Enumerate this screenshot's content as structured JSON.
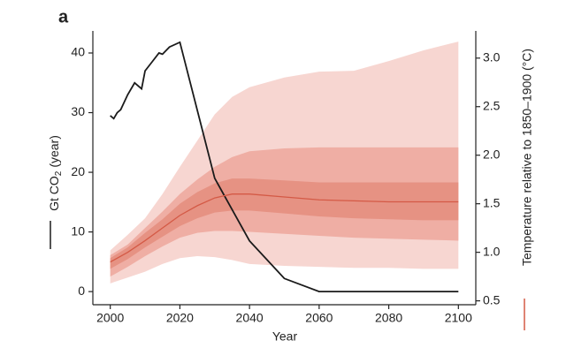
{
  "chart_data": {
    "type": "line",
    "panel_label": "a",
    "xlabel": "Year",
    "ylabel": [
      "Gt CO",
      "2",
      "(year)"
    ],
    "y2label": "Temperature relative to 1850–1900 (°C)",
    "xlim": [
      1995,
      2105
    ],
    "xticks": [
      2000,
      2020,
      2040,
      2060,
      2080,
      2100
    ],
    "ylim": [
      -2.2,
      43.7
    ],
    "yticks": [
      0,
      10,
      20,
      30,
      40
    ],
    "y2lim": [
      0.46,
      3.28
    ],
    "y2ticks": [
      0.5,
      {
        "value": 1,
        "label": "1.0"
      },
      1.5,
      {
        "value": 2,
        "label": "2.0"
      },
      2.5,
      {
        "value": 3,
        "label": "3.0"
      }
    ],
    "series": [
      {
        "color": "#1a1a1a",
        "axis": "y",
        "x": [
          2000,
          2001,
          2002,
          2003,
          2005,
          2007,
          2008,
          2009,
          2010,
          2012,
          2014,
          2015,
          2017,
          2020,
          2030,
          2040,
          2050,
          2060,
          2100
        ],
        "values": [
          29.5,
          29,
          30,
          30.5,
          33,
          35,
          34.5,
          34,
          37,
          38.5,
          40,
          39.8,
          41,
          41.8,
          19,
          8.5,
          2.2,
          0,
          0
        ]
      },
      {
        "color": "#d45a46",
        "axis": "y2",
        "x": [
          2000,
          2005,
          2010,
          2015,
          2020,
          2025,
          2030,
          2035,
          2040,
          2050,
          2060,
          2070,
          2080,
          2090,
          2100
        ],
        "values": [
          0.9,
          1.0,
          1.12,
          1.25,
          1.38,
          1.48,
          1.56,
          1.6,
          1.6,
          1.57,
          1.54,
          1.53,
          1.52,
          1.52,
          1.52
        ]
      }
    ],
    "bands": [
      {
        "color": "#f7d6d1",
        "low": [
          0.68,
          0.74,
          0.8,
          0.88,
          0.94,
          0.96,
          0.95,
          0.92,
          0.88,
          0.86,
          0.85,
          0.84,
          0.84,
          0.83,
          0.83
        ],
        "high": [
          1.02,
          1.18,
          1.35,
          1.6,
          1.88,
          2.15,
          2.42,
          2.6,
          2.7,
          2.8,
          2.86,
          2.87,
          2.97,
          3.08,
          3.17
        ]
      },
      {
        "color": "#efaea4",
        "low": [
          0.75,
          0.85,
          0.96,
          1.06,
          1.15,
          1.2,
          1.22,
          1.22,
          1.21,
          1.19,
          1.17,
          1.15,
          1.14,
          1.13,
          1.12
        ],
        "high": [
          0.97,
          1.08,
          1.25,
          1.42,
          1.6,
          1.75,
          1.88,
          1.98,
          2.04,
          2.07,
          2.08,
          2.08,
          2.08,
          2.08,
          2.08
        ]
      },
      {
        "color": "#e69283",
        "low": [
          0.83,
          0.93,
          1.05,
          1.16,
          1.27,
          1.35,
          1.41,
          1.43,
          1.43,
          1.4,
          1.37,
          1.35,
          1.34,
          1.33,
          1.33
        ],
        "high": [
          0.94,
          1.05,
          1.2,
          1.34,
          1.5,
          1.62,
          1.71,
          1.76,
          1.76,
          1.74,
          1.72,
          1.72,
          1.72,
          1.72,
          1.72
        ]
      }
    ]
  }
}
